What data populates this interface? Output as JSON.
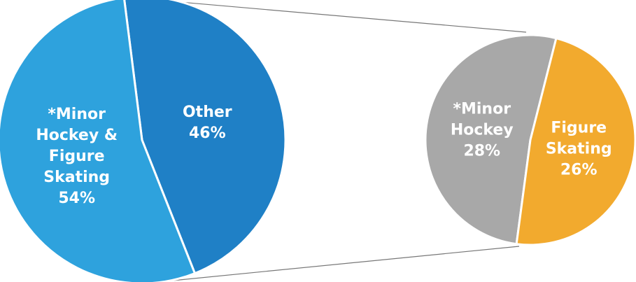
{
  "chart_data": [
    {
      "type": "pie",
      "categories": [
        "Other",
        "*Minor Hockey & Figure Skating"
      ],
      "values": [
        46,
        54
      ],
      "value_labels": [
        "46%",
        "54%"
      ],
      "colors": [
        "#1f80c6",
        "#2ea2dd"
      ]
    },
    {
      "type": "pie",
      "categories": [
        "*Minor Hockey",
        "Figure Skating"
      ],
      "values": [
        28,
        26
      ],
      "value_labels": [
        "28%",
        "26%"
      ],
      "colors": [
        "#a8a8a8",
        "#f2aa2e"
      ]
    }
  ]
}
